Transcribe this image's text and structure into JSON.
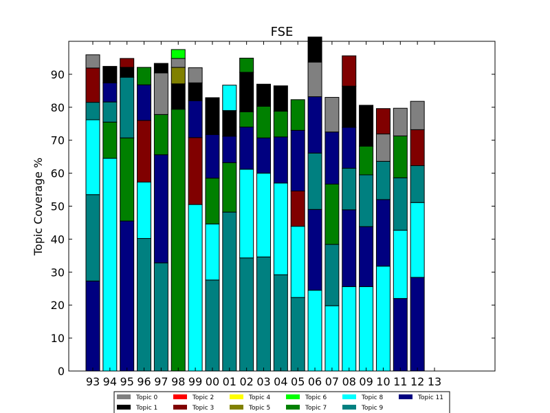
{
  "chart_data": {
    "type": "bar",
    "stacked": true,
    "title": "FSE",
    "xlabel": "",
    "ylabel": "Topic Coverage %",
    "ylim": [
      0,
      100
    ],
    "yticks": [
      0,
      10,
      20,
      30,
      40,
      50,
      60,
      70,
      80,
      90
    ],
    "categories": [
      "93",
      "94",
      "95",
      "96",
      "97",
      "98",
      "99",
      "00",
      "01",
      "02",
      "03",
      "04",
      "05",
      "06",
      "07",
      "08",
      "09",
      "10",
      "11",
      "12",
      "13"
    ],
    "legend_position": "bottom",
    "legend": [
      {
        "name": "Topic 0",
        "color": "#808080"
      },
      {
        "name": "Topic 1",
        "color": "#000000"
      },
      {
        "name": "Topic 2",
        "color": "#ff0000"
      },
      {
        "name": "Topic 3",
        "color": "#800000"
      },
      {
        "name": "Topic 4",
        "color": "#ffff00"
      },
      {
        "name": "Topic 5",
        "color": "#808000"
      },
      {
        "name": "Topic 6",
        "color": "#00ff00"
      },
      {
        "name": "Topic 7",
        "color": "#008000"
      },
      {
        "name": "Topic 8",
        "color": "#00ffff"
      },
      {
        "name": "Topic 9",
        "color": "#008080"
      },
      {
        "name": "Topic 11",
        "color": "#000080"
      }
    ],
    "series": [
      {
        "name": "Topic 11",
        "color": "#000080",
        "values": [
          27.3,
          0,
          45.5,
          0,
          0,
          0,
          0,
          0,
          0,
          0,
          0,
          0,
          0,
          0,
          0,
          0,
          0,
          0,
          22,
          28.4,
          0
        ]
      },
      {
        "name": "Topic 9",
        "color": "#008080",
        "values": [
          26.2,
          0,
          0,
          40.2,
          32.8,
          0,
          0,
          27.6,
          48.2,
          34.3,
          34.6,
          29.2,
          22.3,
          0,
          0,
          0,
          0,
          0,
          0,
          0,
          0
        ]
      },
      {
        "name": "Topic 8",
        "color": "#00ffff",
        "values": [
          22.7,
          64.5,
          0,
          0,
          0,
          0,
          50.5,
          17,
          0,
          26.9,
          25.4,
          27.8,
          21.6,
          24.5,
          19.8,
          25.6,
          25.6,
          31.8,
          20.7,
          22.7,
          0
        ]
      },
      {
        "name": "Topic 11",
        "color": "#000080",
        "values": [
          0,
          0,
          0,
          0,
          32.8,
          0,
          0,
          0,
          0,
          0,
          0,
          0,
          0,
          24.5,
          0,
          23.3,
          18.2,
          20.2,
          0,
          0,
          0
        ]
      },
      {
        "name": "Topic 9",
        "color": "#008080",
        "values": [
          0,
          0,
          0,
          0,
          0,
          0,
          0,
          0,
          0,
          0,
          0,
          0,
          0,
          17.1,
          18.6,
          12.6,
          15.7,
          11.6,
          15.9,
          11.2,
          0
        ]
      },
      {
        "name": "Topic 7",
        "color": "#008000",
        "values": [
          0,
          11,
          25.2,
          0,
          0,
          79.4,
          0,
          13.9,
          15,
          0,
          0,
          0,
          0,
          0,
          18.3,
          0,
          0,
          0,
          0,
          0,
          0
        ]
      },
      {
        "name": "Topic 9",
        "color": "#008080",
        "values": [
          5.3,
          6.1,
          18.4,
          0,
          0,
          0,
          0,
          0,
          0,
          0,
          0,
          0,
          0,
          0,
          0,
          0,
          0,
          0,
          0,
          0,
          0
        ]
      },
      {
        "name": "Topic 8",
        "color": "#00ffff",
        "values": [
          0,
          0,
          0,
          17.1,
          0,
          0,
          0,
          0,
          0,
          0,
          0,
          0,
          0,
          0,
          0,
          0,
          0,
          0,
          0,
          0,
          0
        ]
      },
      {
        "name": "Topic 3",
        "color": "#800000",
        "values": [
          10.4,
          0,
          0,
          18.7,
          0,
          0,
          20.3,
          0,
          0,
          0,
          0,
          0,
          10.7,
          0,
          0,
          0,
          0,
          0,
          0,
          10.9,
          0
        ]
      },
      {
        "name": "Topic 11",
        "color": "#000080",
        "values": [
          0,
          5.8,
          0,
          10.8,
          0,
          0,
          11.2,
          13.2,
          8,
          12.8,
          10.7,
          14,
          18.4,
          17.1,
          15.8,
          12.4,
          0,
          0,
          0,
          0,
          0
        ]
      },
      {
        "name": "Topic 7",
        "color": "#008000",
        "values": [
          0,
          0,
          0,
          5.3,
          12.2,
          0,
          0,
          0,
          0,
          4.6,
          9.6,
          7.8,
          9.3,
          0,
          0,
          0,
          8.7,
          0,
          12.7,
          0,
          0
        ]
      },
      {
        "name": "Topic 0",
        "color": "#808080",
        "values": [
          4,
          0,
          0,
          0,
          12.6,
          0,
          0,
          0,
          0,
          0,
          0,
          0,
          0,
          10.5,
          10.5,
          0,
          0,
          8.3,
          8.4,
          8.6,
          0
        ]
      },
      {
        "name": "Topic 1",
        "color": "#000000",
        "values": [
          0,
          5,
          3,
          0,
          2.9,
          7.7,
          5.4,
          11.2,
          7.8,
          12,
          6.7,
          7.7,
          0,
          7.6,
          0,
          12.5,
          12.4,
          0,
          0,
          0,
          0
        ]
      },
      {
        "name": "Topic 3",
        "color": "#800000",
        "values": [
          0,
          0,
          2.7,
          0,
          0,
          0,
          0,
          0,
          0,
          0,
          0,
          0,
          0,
          0,
          0,
          9.2,
          0,
          7.7,
          0,
          0,
          0
        ]
      },
      {
        "name": "Topic 5",
        "color": "#808000",
        "values": [
          0,
          0,
          0,
          0,
          0,
          5,
          0,
          0,
          0,
          0,
          0,
          0,
          0,
          0,
          0,
          0,
          0,
          0,
          0,
          0,
          0
        ]
      },
      {
        "name": "Topic 0",
        "color": "#808080",
        "values": [
          0,
          0,
          0,
          0,
          0,
          2.7,
          4.6,
          0,
          0,
          0,
          0,
          0,
          0,
          0,
          0,
          0,
          0,
          0,
          0,
          0,
          0
        ]
      },
      {
        "name": "Topic 6",
        "color": "#00ff00",
        "values": [
          0,
          0,
          0,
          0,
          0,
          2.7,
          0,
          0,
          0,
          0,
          0,
          0,
          0,
          0,
          0,
          0,
          0,
          0,
          0,
          0,
          0
        ]
      },
      {
        "name": "Topic 8",
        "color": "#00ffff",
        "values": [
          0,
          0,
          0,
          0,
          0,
          0,
          0,
          0,
          7.7,
          0,
          0,
          0,
          0,
          0,
          0,
          0,
          0,
          0,
          0,
          0,
          0
        ]
      },
      {
        "name": "Topic 7",
        "color": "#008000",
        "values": [
          0,
          0,
          0,
          0,
          0,
          0,
          0,
          0,
          0,
          4.3,
          0,
          0,
          0,
          0,
          0,
          0,
          0,
          0,
          0,
          0,
          0
        ]
      }
    ]
  }
}
